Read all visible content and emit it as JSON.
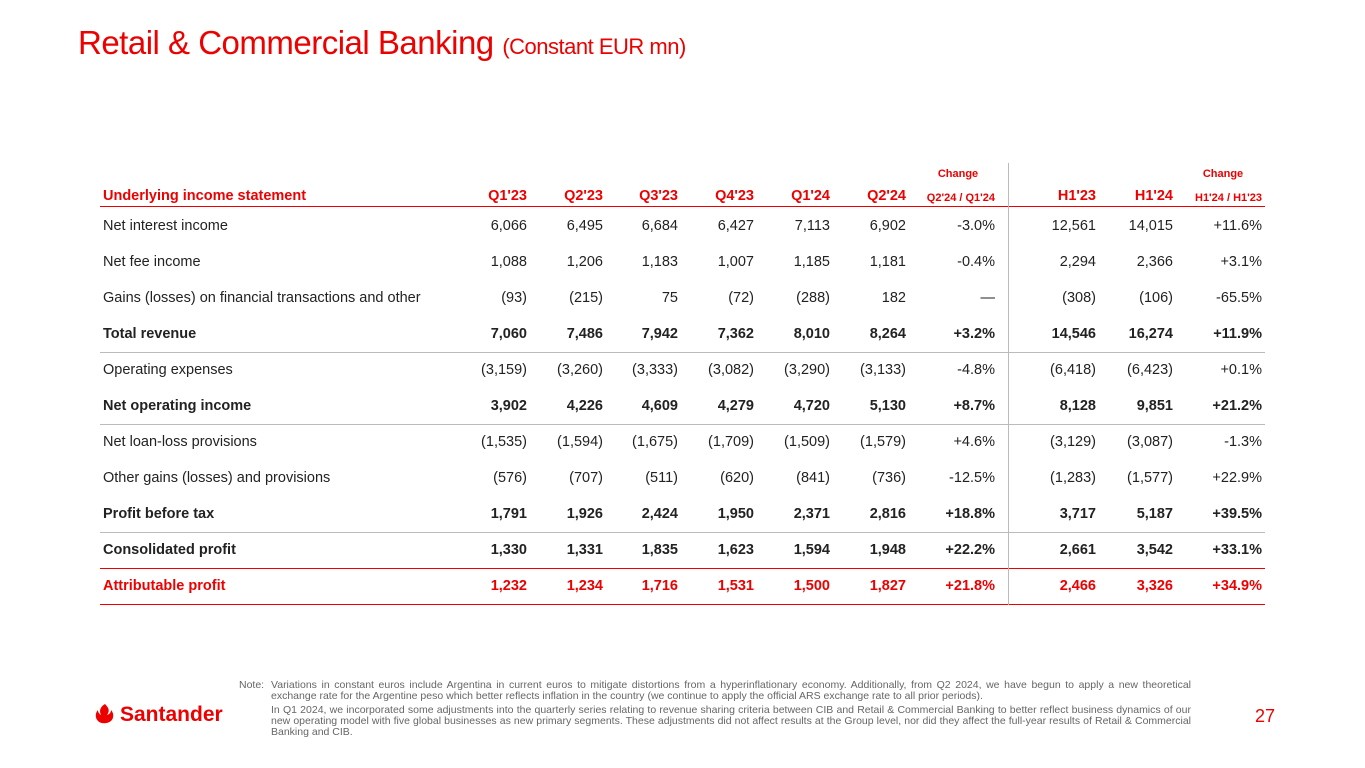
{
  "header": {
    "title": "Retail & Commercial Banking",
    "subtitle": "(Constant EUR mn)"
  },
  "table": {
    "change_label": "Change",
    "columns": [
      "Underlying income statement",
      "Q1'23",
      "Q2'23",
      "Q3'23",
      "Q4'23",
      "Q1'24",
      "Q2'24",
      "Q2'24 / Q1'24",
      "H1'23",
      "H1'24",
      "H1'24 / H1'23"
    ],
    "rows": [
      [
        "Net interest income",
        "6,066",
        "6,495",
        "6,684",
        "6,427",
        "7,113",
        "6,902",
        "-3.0%",
        "12,561",
        "14,015",
        "+11.6%"
      ],
      [
        "Net fee income",
        "1,088",
        "1,206",
        "1,183",
        "1,007",
        "1,185",
        "1,181",
        "-0.4%",
        "2,294",
        "2,366",
        "+3.1%"
      ],
      [
        "Gains (losses) on financial transactions and other",
        "(93)",
        "(215)",
        "75",
        "(72)",
        "(288)",
        "182",
        "—",
        "(308)",
        "(106)",
        "-65.5%"
      ],
      [
        "Total revenue",
        "7,060",
        "7,486",
        "7,942",
        "7,362",
        "8,010",
        "8,264",
        "+3.2%",
        "14,546",
        "16,274",
        "+11.9%"
      ],
      [
        "Operating expenses",
        "(3,159)",
        "(3,260)",
        "(3,333)",
        "(3,082)",
        "(3,290)",
        "(3,133)",
        "-4.8%",
        "(6,418)",
        "(6,423)",
        "+0.1%"
      ],
      [
        "Net operating income",
        "3,902",
        "4,226",
        "4,609",
        "4,279",
        "4,720",
        "5,130",
        "+8.7%",
        "8,128",
        "9,851",
        "+21.2%"
      ],
      [
        "Net loan-loss provisions",
        "(1,535)",
        "(1,594)",
        "(1,675)",
        "(1,709)",
        "(1,509)",
        "(1,579)",
        "+4.6%",
        "(3,129)",
        "(3,087)",
        "-1.3%"
      ],
      [
        "Other gains (losses) and provisions",
        "(576)",
        "(707)",
        "(511)",
        "(620)",
        "(841)",
        "(736)",
        "-12.5%",
        "(1,283)",
        "(1,577)",
        "+22.9%"
      ],
      [
        "Profit before tax",
        "1,791",
        "1,926",
        "2,424",
        "1,950",
        "2,371",
        "2,816",
        "+18.8%",
        "3,717",
        "5,187",
        "+39.5%"
      ],
      [
        "Consolidated profit",
        "1,330",
        "1,331",
        "1,835",
        "1,623",
        "1,594",
        "1,948",
        "+22.2%",
        "2,661",
        "3,542",
        "+33.1%"
      ],
      [
        "Attributable profit",
        "1,232",
        "1,234",
        "1,716",
        "1,531",
        "1,500",
        "1,827",
        "+21.8%",
        "2,466",
        "3,326",
        "+34.9%"
      ]
    ]
  },
  "footer": {
    "note_label": "Note:",
    "notes": [
      "Variations in constant euros include Argentina in current euros to mitigate distortions from a hyperinflationary economy. Additionally, from Q2 2024, we have begun to apply a new theoretical exchange rate for the Argentine peso which better reflects inflation in the country (we continue to apply the official ARS exchange rate to all prior periods).",
      "In Q1 2024, we incorporated some adjustments into the quarterly series relating to revenue sharing criteria between CIB and Retail & Commercial Banking to better reflect business dynamics of our new operating model with five global businesses as new primary segments. These adjustments did not affect results at the Group level, nor did they affect the full-year results of Retail & Commercial Banking and CIB."
    ],
    "logo": "Santander",
    "page": "27"
  }
}
